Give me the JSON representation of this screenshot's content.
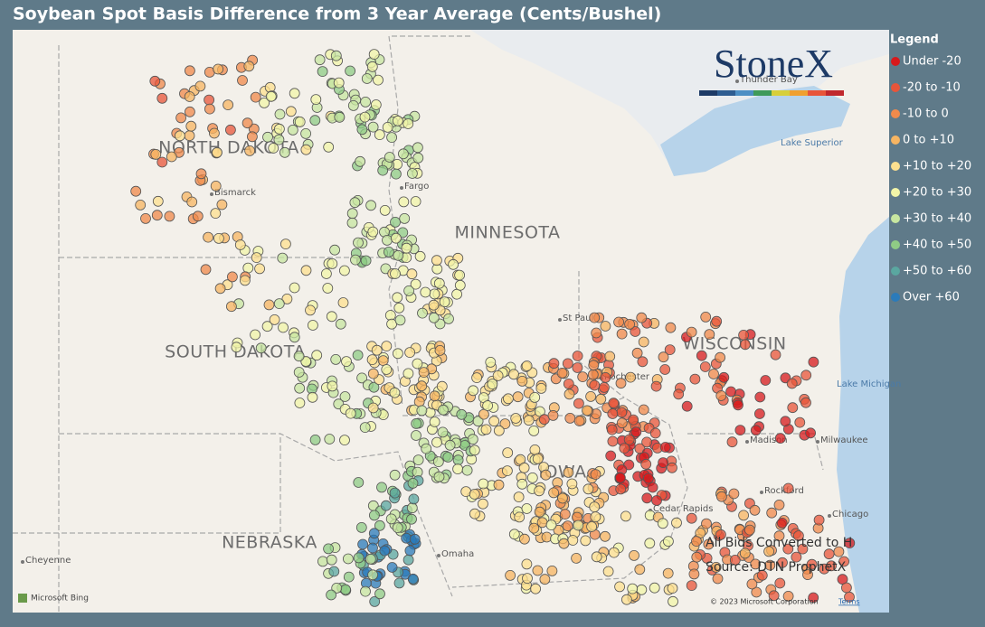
{
  "header": {
    "title": "Soybean Spot Basis Difference from 3 Year Average (Cents/Bushel)"
  },
  "legend": {
    "title": "Legend",
    "items": [
      {
        "label": "Under -20",
        "color": "#d7191c"
      },
      {
        "label": "-20 to -10",
        "color": "#e8553a"
      },
      {
        "label": "-10 to 0",
        "color": "#f08a4b"
      },
      {
        "label": "0 to +10",
        "color": "#f7b562"
      },
      {
        "label": "+10 to +20",
        "color": "#fde08f"
      },
      {
        "label": "+20 to +30",
        "color": "#f2f5a8"
      },
      {
        "label": "+30 to +40",
        "color": "#c7e6a0"
      },
      {
        "label": "+40 to +50",
        "color": "#8fcc85"
      },
      {
        "label": "+50 to +60",
        "color": "#5aa7a0"
      },
      {
        "label": "Over +60",
        "color": "#2b7bba"
      }
    ]
  },
  "map": {
    "states": [
      "NORTH DAKOTA",
      "MINNESOTA",
      "SOUTH DAKOTA",
      "WISCONSIN",
      "NEBRASKA",
      "IOWA"
    ],
    "cities": [
      "Bismarck",
      "Fargo",
      "St Paul",
      "Rochester",
      "Madison",
      "Milwaukee",
      "Rockford",
      "Chicago",
      "Cheyenne",
      "Omaha",
      "Cedar Rapids",
      "Thunder Bay"
    ],
    "water": [
      "Lake Superior",
      "Lake Michigan"
    ]
  },
  "logo": "StoneX",
  "notes": [
    "All Bids Converted to H",
    "Source: DTN ProphetX"
  ],
  "attribution": {
    "provider": "Microsoft Bing",
    "copyright": "© 2023 Microsoft Corporation",
    "terms": "Terms"
  }
}
